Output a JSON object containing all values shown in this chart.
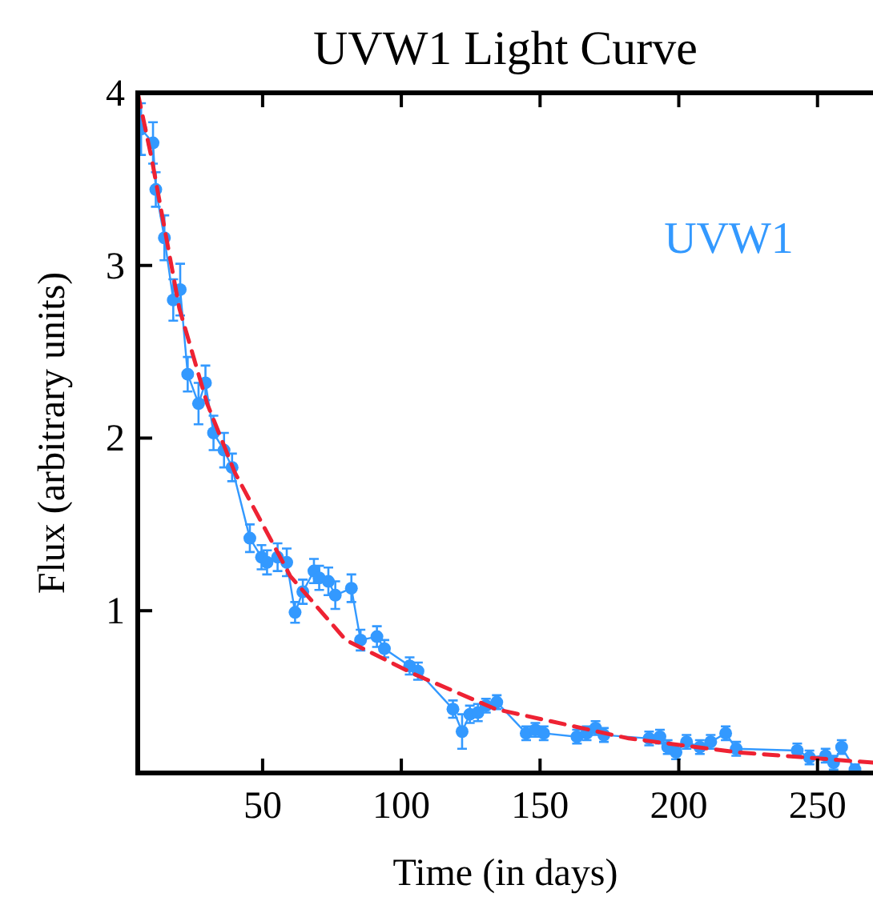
{
  "chart_data": {
    "type": "line",
    "title": "UVW1 Light Curve",
    "xlabel": "Time (in days)",
    "ylabel": "Flux (arbitrary units)",
    "xlim": [
      5,
      270
    ],
    "ylim": [
      0.06,
      4
    ],
    "xticks": [
      50,
      100,
      150,
      200,
      250
    ],
    "yticks": [
      1,
      2,
      3,
      4
    ],
    "grid": false,
    "legend": "top right",
    "series": [
      {
        "name": "UVW1",
        "marker": "circle",
        "line_style": "solid",
        "color": "#3399ff",
        "x": [
          6.2,
          10.5,
          11.5,
          14.6,
          17.8,
          20.3,
          23,
          26.9,
          29.4,
          32.3,
          36.1,
          39,
          45.4,
          49.6,
          51.6,
          55.4,
          58.7,
          61.7,
          64.5,
          68.5,
          70.4,
          73.7,
          76.2,
          82,
          85.3,
          91.2,
          93.9,
          103,
          106,
          118.6,
          121.9,
          124.7,
          127.6,
          130.5,
          134.4,
          145,
          148.3,
          151.3,
          163.3,
          166.8,
          170,
          173,
          189.3,
          193.2,
          196,
          199,
          202.8,
          207.6,
          211.5,
          216.9,
          220.7,
          242.7,
          247.1,
          252.9,
          255.8,
          258.7,
          263.5
        ],
        "values": [
          3.79,
          3.71,
          3.44,
          3.16,
          2.8,
          2.86,
          2.37,
          2.2,
          2.32,
          2.03,
          1.93,
          1.83,
          1.42,
          1.31,
          1.28,
          1.31,
          1.28,
          0.99,
          1.11,
          1.23,
          1.19,
          1.17,
          1.09,
          1.13,
          0.83,
          0.85,
          0.78,
          0.68,
          0.65,
          0.43,
          0.3,
          0.4,
          0.41,
          0.45,
          0.47,
          0.29,
          0.31,
          0.29,
          0.27,
          0.29,
          0.32,
          0.28,
          0.26,
          0.27,
          0.21,
          0.18,
          0.24,
          0.21,
          0.24,
          0.29,
          0.2,
          0.19,
          0.15,
          0.16,
          0.12,
          0.21,
          0.08
        ],
        "errors": [
          0.15,
          0.12,
          0.1,
          0.13,
          0.12,
          0.15,
          0.1,
          0.12,
          0.1,
          0.1,
          0.1,
          0.08,
          0.08,
          0.07,
          0.07,
          0.08,
          0.08,
          0.06,
          0.07,
          0.07,
          0.07,
          0.08,
          0.08,
          0.08,
          0.06,
          0.06,
          0.05,
          0.05,
          0.05,
          0.05,
          0.1,
          0.05,
          0.05,
          0.04,
          0.04,
          0.04,
          0.04,
          0.04,
          0.04,
          0.04,
          0.04,
          0.04,
          0.04,
          0.04,
          0.04,
          0.04,
          0.04,
          0.04,
          0.04,
          0.04,
          0.04,
          0.04,
          0.04,
          0.04,
          0.04,
          0.04,
          0.03
        ]
      },
      {
        "marker": "none",
        "line_style": "dashed",
        "color": "#ee2233",
        "x": [
          5,
          10,
          20,
          30,
          40,
          46,
          60,
          80,
          105,
          134,
          182,
          221,
          270
        ],
        "values": [
          4.0,
          3.62,
          2.75,
          2.2,
          1.8,
          1.62,
          1.2,
          0.83,
          0.63,
          0.43,
          0.26,
          0.18,
          0.12
        ]
      }
    ]
  }
}
